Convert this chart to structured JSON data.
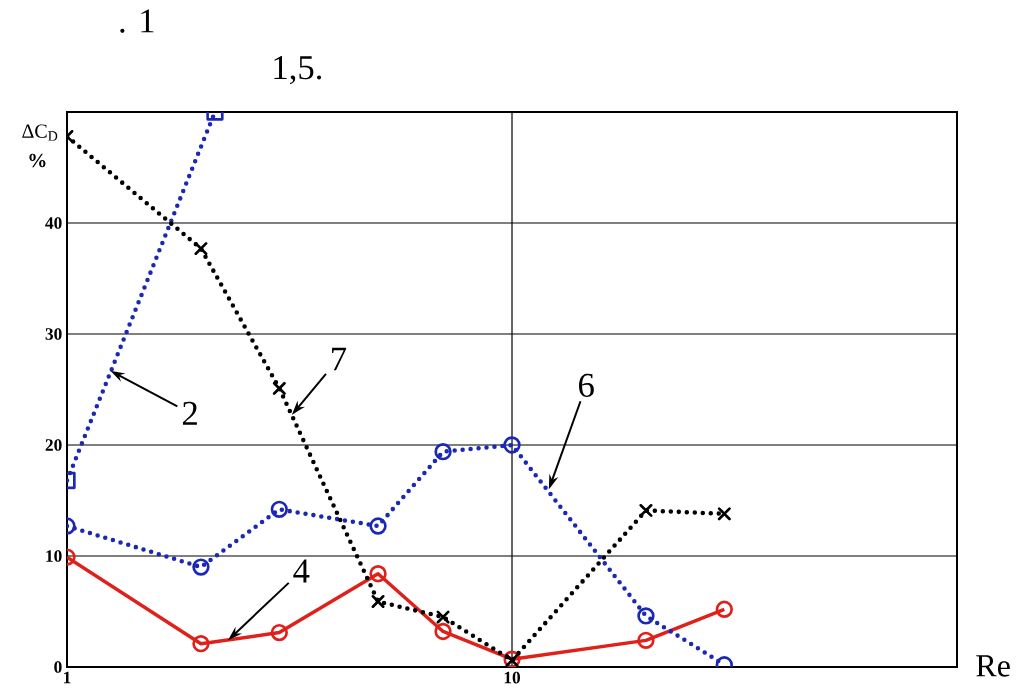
{
  "chart_data": {
    "type": "line",
    "title": ". 1",
    "subtitle": "1,5.",
    "xlabel": "Re",
    "ylabel": "ΔC$_{D}$",
    "annotations": [
      "%",
      {
        "text": "2",
        "x": 1.25,
        "y": 26.7
      },
      {
        "text": "7",
        "x": 3.2,
        "y": 22.7
      },
      {
        "text": "6",
        "x": 12.1,
        "y": 16.0
      },
      {
        "text": "4",
        "x": 2.3,
        "y": 2.4
      }
    ],
    "log": "x",
    "grid": true,
    "xlim": [
      1,
      100
    ],
    "xticks": [
      1,
      10,
      {
        "value": 100,
        "label": null
      }
    ],
    "ylim": [
      0,
      50
    ],
    "yticks": [
      0,
      10,
      20,
      30,
      40
    ],
    "series": [
      {
        "color": "#1a28b4",
        "x": [
          1,
          2.15
        ],
        "values": [
          16.8,
          50
        ],
        "marker": "square",
        "line_style": "dotted"
      },
      {
        "color": "#e0201a",
        "x": [
          1,
          2,
          3,
          5,
          7,
          10,
          20,
          30
        ],
        "values": [
          9.9,
          2.1,
          3.1,
          8.4,
          3.2,
          0.7,
          2.4,
          5.2
        ],
        "marker": "circle",
        "line_style": "solid"
      },
      {
        "color": "#1a28b4",
        "x": [
          1,
          2,
          3,
          5,
          7,
          10,
          20,
          30
        ],
        "values": [
          12.7,
          9.0,
          14.2,
          12.7,
          19.4,
          20.0,
          4.6,
          0.2
        ],
        "marker": "circle",
        "line_style": "dotted"
      },
      {
        "color": "#000000",
        "x": [
          1,
          2,
          3,
          5,
          7,
          10,
          20,
          30
        ],
        "values": [
          47.8,
          37.7,
          25.1,
          5.9,
          4.5,
          0.6,
          14.1,
          13.8
        ],
        "marker": "cross",
        "line_style": "dotted"
      }
    ]
  }
}
